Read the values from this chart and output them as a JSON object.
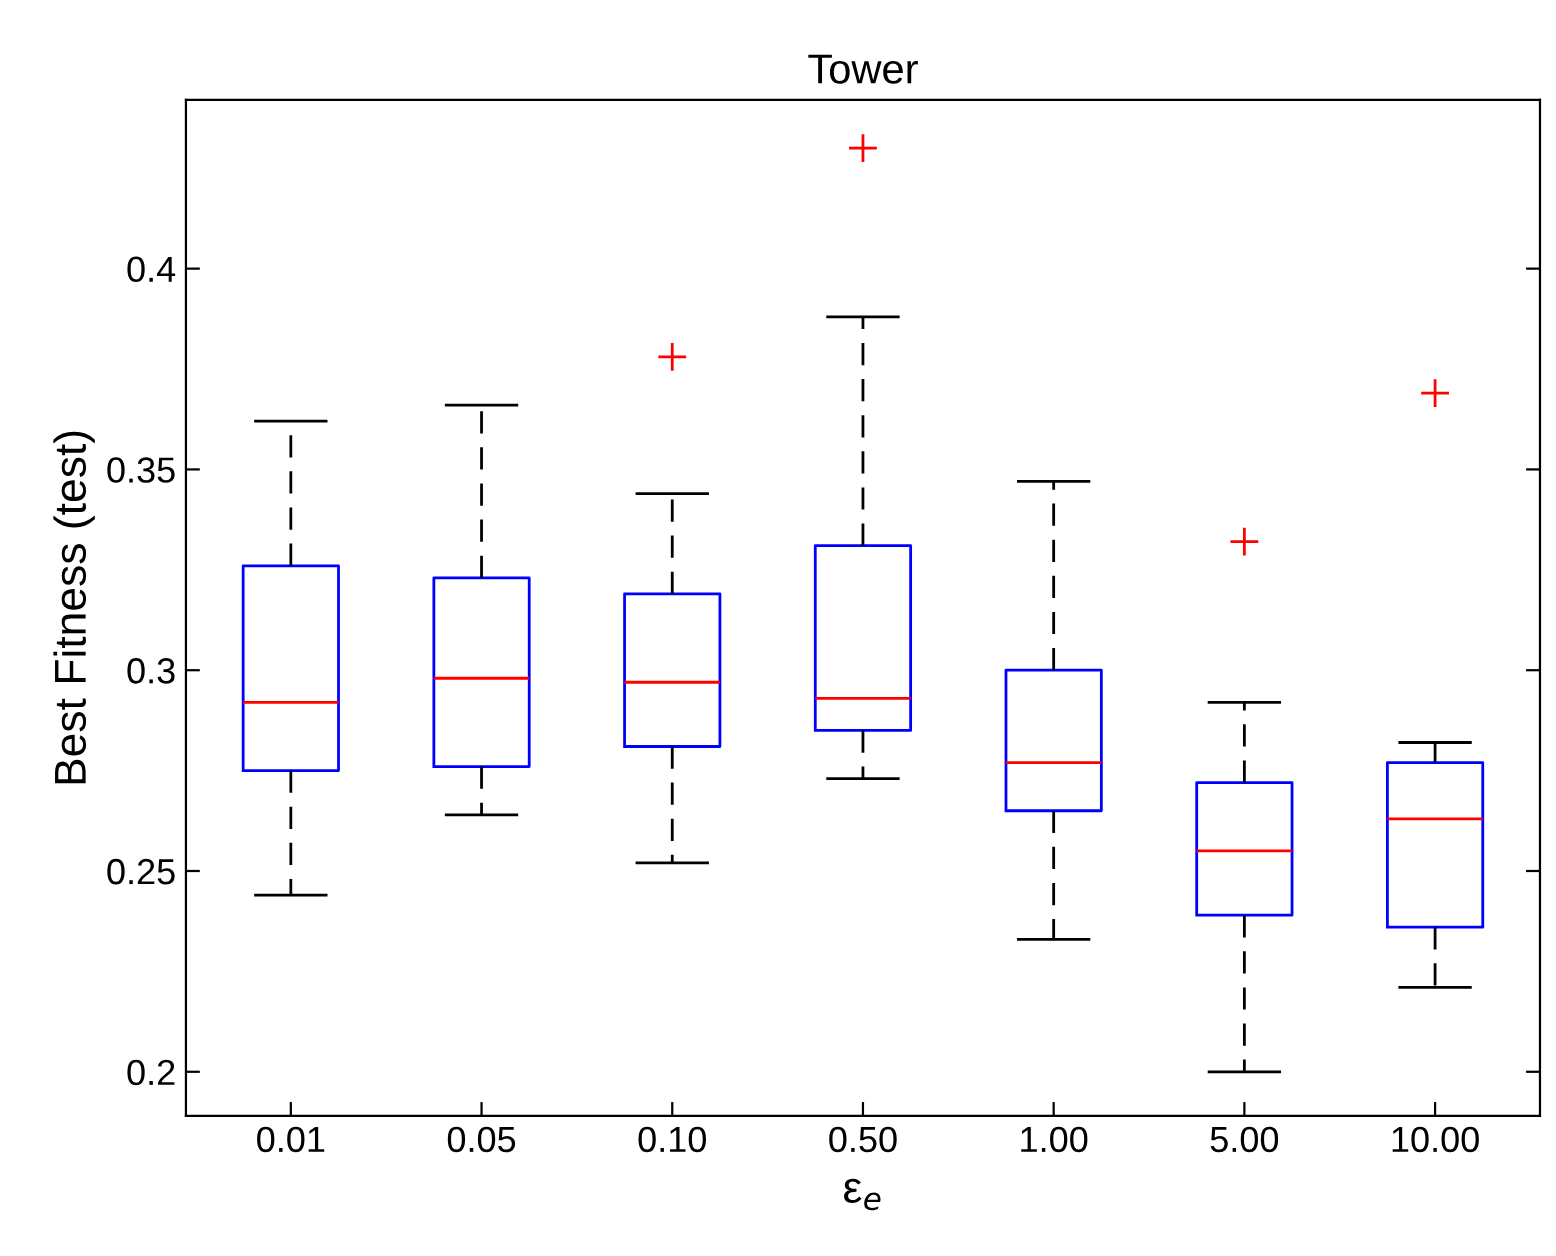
{
  "chart_data": {
    "type": "box",
    "title": "Tower",
    "xlabel": "ε$_{e}$",
    "ylabel": "Best Fitness (test)",
    "categories": [
      "0.01",
      "0.05",
      "0.10",
      "0.50",
      "1.00",
      "5.00",
      "10.00"
    ],
    "color": "#0000ff",
    "marker": "cross",
    "boxes": [
      {
        "low": 0.244,
        "q1": 0.275,
        "median": 0.292,
        "q3": 0.326,
        "high": 0.362
      },
      {
        "low": 0.264,
        "q1": 0.276,
        "median": 0.298,
        "q3": 0.323,
        "high": 0.366
      },
      {
        "low": 0.252,
        "q1": 0.281,
        "median": 0.297,
        "q3": 0.319,
        "high": 0.344,
        "outliers": [
          0.378
        ]
      },
      {
        "low": 0.273,
        "q1": 0.285,
        "median": 0.293,
        "q3": 0.331,
        "high": 0.388,
        "outliers": [
          0.43
        ]
      },
      {
        "low": 0.233,
        "q1": 0.265,
        "median": 0.277,
        "q3": 0.3,
        "high": 0.347
      },
      {
        "low": 0.2,
        "q1": 0.239,
        "median": 0.255,
        "q3": 0.272,
        "high": 0.292,
        "outliers": [
          0.332
        ]
      },
      {
        "low": 0.221,
        "q1": 0.236,
        "median": 0.263,
        "q3": 0.277,
        "high": 0.282,
        "outliers": [
          0.369
        ]
      }
    ],
    "ylim": [
      0.189,
      0.442
    ],
    "yticks": [
      0.2,
      0.25,
      0.3,
      0.35,
      0.4
    ]
  }
}
